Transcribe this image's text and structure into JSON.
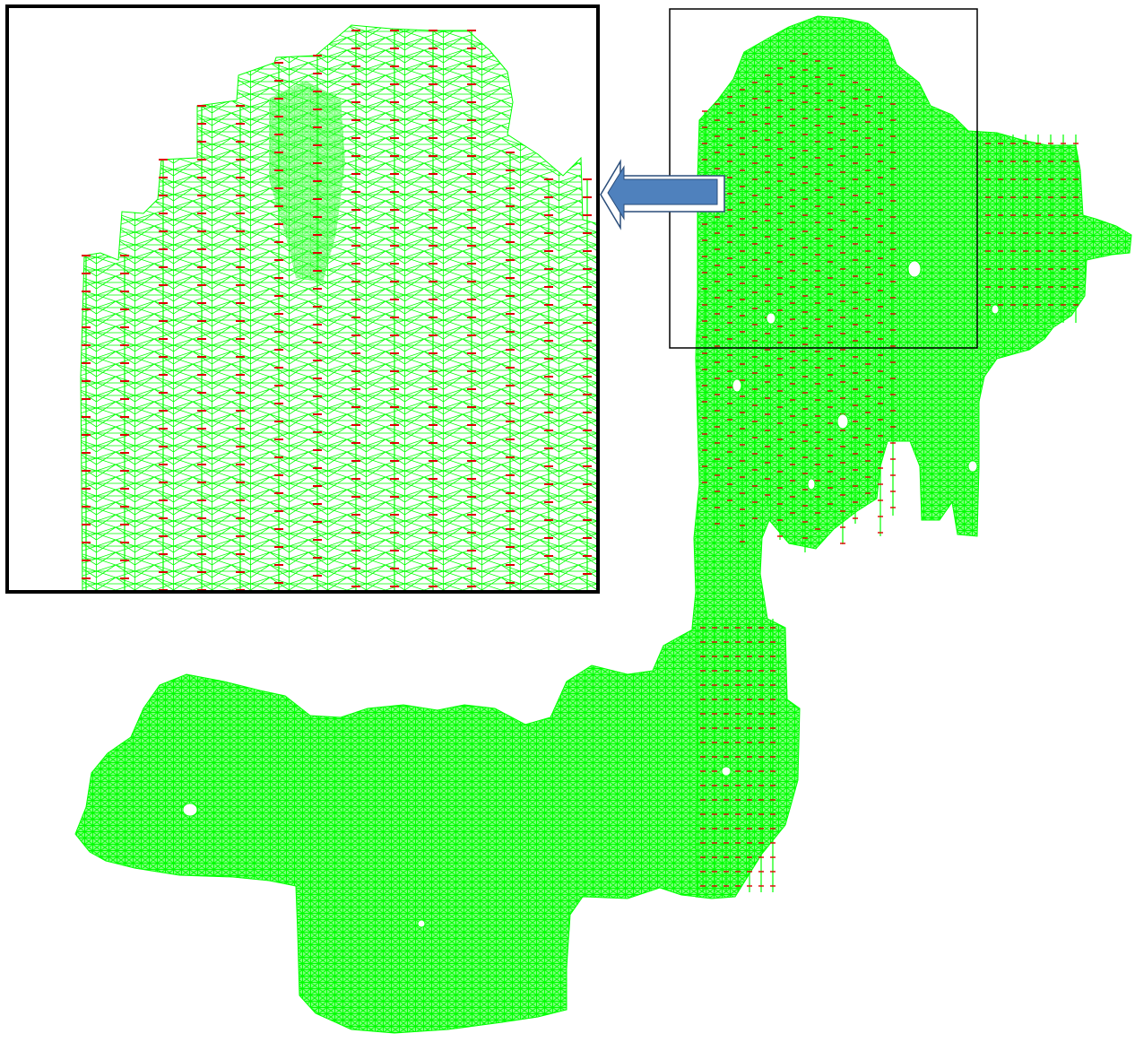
{
  "figure": {
    "description_free": true,
    "colors": {
      "mesh": "#00ff00",
      "mesh_dark": "#00d000",
      "points": "#e00000",
      "arrow_fill": "#4f81bd",
      "arrow_edge": "#2a4d7a",
      "frame": "#000000",
      "background": "#ffffff"
    },
    "main_map": {
      "shape": "survey-network-mesh"
    },
    "inset": {
      "shape": "zoomed-survey-network-mesh"
    },
    "arrow": {
      "icon": "left-arrow-icon"
    }
  }
}
